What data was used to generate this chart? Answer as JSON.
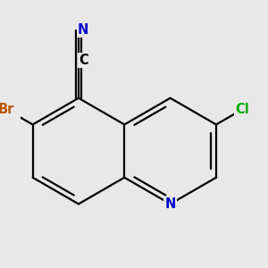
{
  "background_color": "#e8e8e8",
  "bond_color": "#000000",
  "bond_lw": 1.6,
  "dbo": 0.028,
  "shrink": 0.16,
  "r_circ": 0.28,
  "figsize": [
    3.0,
    3.0
  ],
  "dpi": 100,
  "colors": {
    "N": "#0000cc",
    "Br": "#bb5500",
    "Cl": "#00aa00",
    "C": "#000000",
    "N_cn": "#0000cc"
  },
  "fs": 10.5
}
